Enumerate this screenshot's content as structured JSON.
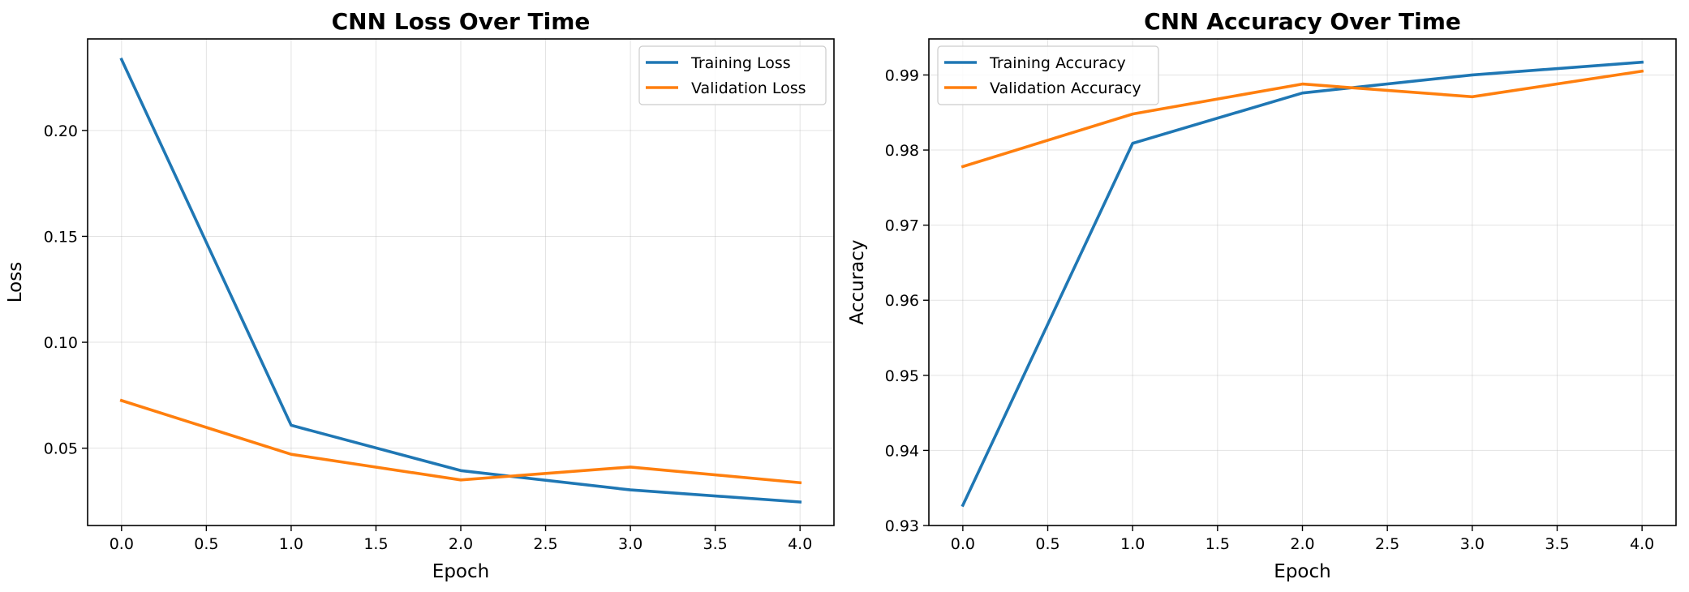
{
  "colors": {
    "series1": "#1f77b4",
    "series2": "#ff7f0e"
  },
  "chart_data": [
    {
      "type": "line",
      "title": "CNN Loss Over Time",
      "xlabel": "Epoch",
      "ylabel": "Loss",
      "x": [
        0,
        1,
        2,
        3,
        4
      ],
      "xlim": [
        -0.2,
        4.2
      ],
      "ylim": [
        0.0135,
        0.2432
      ],
      "xticks": [
        0.0,
        0.5,
        1.0,
        1.5,
        2.0,
        2.5,
        3.0,
        3.5,
        4.0
      ],
      "xtick_labels": [
        "0.0",
        "0.5",
        "1.0",
        "1.5",
        "2.0",
        "2.5",
        "3.0",
        "3.5",
        "4.0"
      ],
      "yticks": [
        0.05,
        0.1,
        0.15,
        0.2
      ],
      "ytick_labels": [
        "0.05",
        "0.10",
        "0.15",
        "0.20"
      ],
      "grid": true,
      "legend_position": "upper right",
      "series": [
        {
          "name": "Training Loss",
          "values": [
            0.2335,
            0.0608,
            0.0394,
            0.0303,
            0.0246
          ]
        },
        {
          "name": "Validation Loss",
          "values": [
            0.0725,
            0.0471,
            0.035,
            0.0411,
            0.0337
          ]
        }
      ]
    },
    {
      "type": "line",
      "title": "CNN Accuracy Over Time",
      "xlabel": "Epoch",
      "ylabel": "Accuracy",
      "x": [
        0,
        1,
        2,
        3,
        4
      ],
      "xlim": [
        -0.2,
        4.2
      ],
      "ylim": [
        0.93,
        0.9948
      ],
      "xticks": [
        0.0,
        0.5,
        1.0,
        1.5,
        2.0,
        2.5,
        3.0,
        3.5,
        4.0
      ],
      "xtick_labels": [
        "0.0",
        "0.5",
        "1.0",
        "1.5",
        "2.0",
        "2.5",
        "3.0",
        "3.5",
        "4.0"
      ],
      "yticks": [
        0.93,
        0.94,
        0.95,
        0.96,
        0.97,
        0.98,
        0.99
      ],
      "ytick_labels": [
        "0.93",
        "0.94",
        "0.95",
        "0.96",
        "0.97",
        "0.98",
        "0.99"
      ],
      "grid": true,
      "legend_position": "upper left",
      "series": [
        {
          "name": "Training Accuracy",
          "values": [
            0.9327,
            0.9809,
            0.9876,
            0.99,
            0.9917
          ]
        },
        {
          "name": "Validation Accuracy",
          "values": [
            0.9778,
            0.9848,
            0.9888,
            0.9871,
            0.9905
          ]
        }
      ]
    }
  ]
}
